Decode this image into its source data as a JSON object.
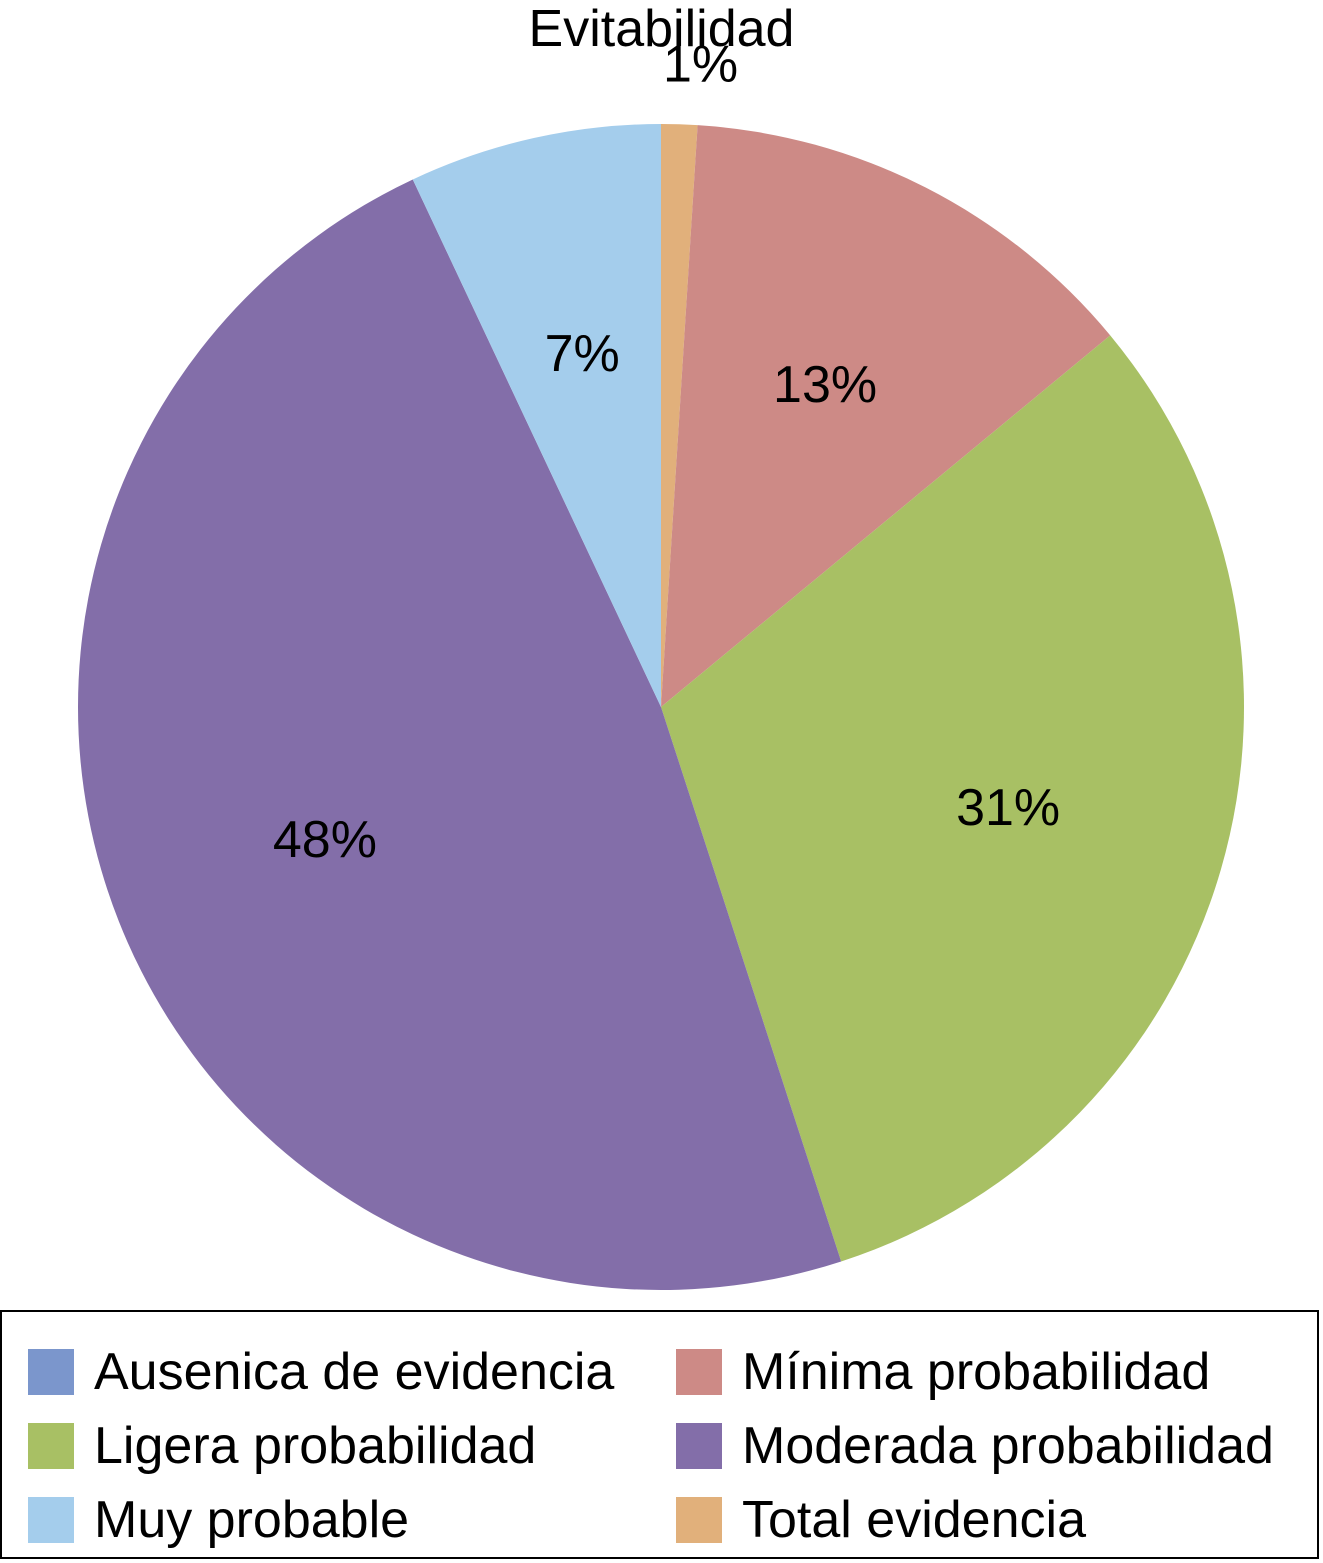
{
  "chart_data": {
    "type": "pie",
    "title": "Evitabilidad",
    "legend_position": "bottom",
    "slices": [
      {
        "name": "Ausenica de evidencia",
        "value": 0,
        "label": "",
        "color": "#7b96cc"
      },
      {
        "name": "Total evidencia",
        "value": 1,
        "label": "1%",
        "color": "#e1b07b"
      },
      {
        "name": "Mínima probabilidad",
        "value": 13,
        "label": "13%",
        "color": "#cd8a86"
      },
      {
        "name": "Ligera probabilidad",
        "value": 31,
        "label": "31%",
        "color": "#a8c064"
      },
      {
        "name": "Moderada probabilidad",
        "value": 48,
        "label": "48%",
        "color": "#836ea9"
      },
      {
        "name": "Muy probable",
        "value": 7,
        "label": "7%",
        "color": "#a4cdec"
      }
    ]
  },
  "legend": {
    "items": [
      {
        "label": "Ausenica de evidencia",
        "color": "#7b96cc"
      },
      {
        "label": "Mínima probabilidad",
        "color": "#cd8a86"
      },
      {
        "label": "Ligera probabilidad",
        "color": "#a8c064"
      },
      {
        "label": "Moderada probabilidad",
        "color": "#836ea9"
      },
      {
        "label": "Muy probable",
        "color": "#a4cdec"
      },
      {
        "label": "Total evidencia",
        "color": "#e1b07b"
      }
    ]
  }
}
